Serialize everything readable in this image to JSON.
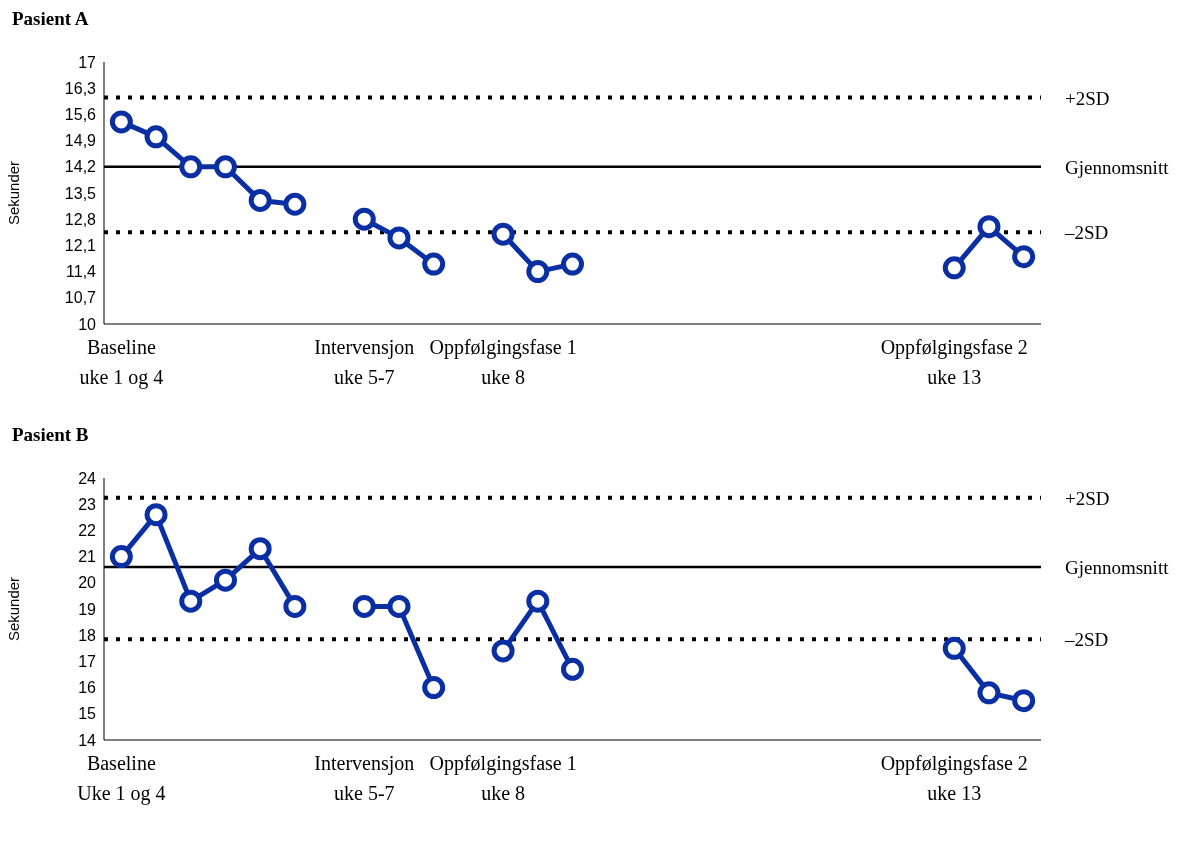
{
  "chart_data": [
    {
      "type": "line",
      "title": "Pasient A",
      "ylabel": "Sekunder",
      "categories": [
        "Baseline\nuke 1 og 4",
        null,
        null,
        null,
        null,
        null,
        null,
        "Intervensjon\nuke 5-7",
        null,
        null,
        null,
        "Oppfølgingsfase 1\nuke 8",
        null,
        null,
        null,
        null,
        null,
        null,
        null,
        null,
        null,
        null,
        null,
        null,
        "Oppfølgingsfase 2\nuke 13",
        null,
        null
      ],
      "series": [
        {
          "color": "#0a2fa3",
          "values": [
            15.4,
            15.0,
            14.2,
            14.2,
            13.3,
            13.2,
            null,
            12.8,
            12.3,
            11.6,
            null,
            12.4,
            11.4,
            11.6,
            null,
            null,
            null,
            null,
            null,
            null,
            null,
            null,
            null,
            null,
            11.5,
            12.6,
            11.8
          ]
        }
      ],
      "ylim": [
        10,
        17
      ],
      "yticks": [
        10,
        {
          "value": 10.7,
          "label": "10,7"
        },
        {
          "value": 11.4,
          "label": "11,4"
        },
        {
          "value": 12.1,
          "label": "12,1"
        },
        {
          "value": 12.8,
          "label": "12,8"
        },
        {
          "value": 13.5,
          "label": "13,5"
        },
        {
          "value": 14.2,
          "label": "14,2"
        },
        {
          "value": 14.9,
          "label": "14,9"
        },
        {
          "value": 15.6,
          "label": "15,6"
        },
        {
          "value": 16.3,
          "label": "16,3"
        },
        17
      ],
      "ref_lines": [
        {
          "axis": "y",
          "value": 16.05,
          "label": "+2SD",
          "color": "#000000",
          "line_style": "dotted"
        },
        {
          "axis": "y",
          "value": 14.2,
          "label": "Gjennomsnitt",
          "color": "#000000",
          "line_style": "solid"
        },
        {
          "axis": "y",
          "value": 12.45,
          "label": "–2SD",
          "color": "#000000",
          "line_style": "dotted"
        }
      ],
      "marker": "circle",
      "line_style": "solid",
      "legend": false,
      "grid": false
    },
    {
      "type": "line",
      "title": "Pasient B",
      "ylabel": "Sekunder",
      "categories": [
        "Baseline\nUke 1 og 4",
        null,
        null,
        null,
        null,
        null,
        null,
        "Intervensjon\nuke 5-7",
        null,
        null,
        null,
        "Oppfølgingsfase 1\nuke 8",
        null,
        null,
        null,
        null,
        null,
        null,
        null,
        null,
        null,
        null,
        null,
        null,
        "Oppfølgingsfase 2\nuke 13",
        null,
        null
      ],
      "series": [
        {
          "color": "#0a2fa3",
          "values": [
            21.0,
            22.6,
            19.3,
            20.1,
            21.3,
            19.1,
            null,
            19.1,
            19.1,
            16.0,
            null,
            17.4,
            19.3,
            16.7,
            null,
            null,
            null,
            null,
            null,
            null,
            null,
            null,
            null,
            null,
            17.5,
            15.8,
            15.5
          ]
        }
      ],
      "ylim": [
        14,
        24
      ],
      "yticks": [
        14,
        15,
        16,
        17,
        18,
        19,
        20,
        21,
        22,
        23,
        24
      ],
      "ref_lines": [
        {
          "axis": "y",
          "value": 23.25,
          "label": "+2SD",
          "color": "#000000",
          "line_style": "dotted"
        },
        {
          "axis": "y",
          "value": 20.6,
          "label": "Gjennomsnitt",
          "color": "#000000",
          "line_style": "solid"
        },
        {
          "axis": "y",
          "value": 17.85,
          "label": "–2SD",
          "color": "#000000",
          "line_style": "dotted"
        }
      ],
      "marker": "circle",
      "line_style": "solid",
      "legend": false,
      "grid": false
    }
  ]
}
